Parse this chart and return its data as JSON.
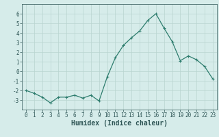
{
  "x": [
    0,
    1,
    2,
    3,
    4,
    5,
    6,
    7,
    8,
    9,
    10,
    11,
    12,
    13,
    14,
    15,
    16,
    17,
    18,
    19,
    20,
    21,
    22,
    23
  ],
  "y": [
    -2,
    -2.3,
    -2.7,
    -3.3,
    -2.7,
    -2.7,
    -2.5,
    -2.8,
    -2.5,
    -3.1,
    -0.6,
    1.4,
    2.7,
    3.5,
    4.2,
    5.3,
    6.0,
    4.5,
    3.1,
    1.1,
    1.6,
    1.2,
    0.5,
    -0.8
  ],
  "line_color": "#2e7d6e",
  "marker": "+",
  "marker_size": 3,
  "marker_lw": 0.8,
  "bg_color": "#d6ecea",
  "grid_color": "#b8d4d0",
  "xlabel": "Humidex (Indice chaleur)",
  "xlim": [
    -0.5,
    23.5
  ],
  "ylim": [
    -4,
    7
  ],
  "yticks": [
    -3,
    -2,
    -1,
    0,
    1,
    2,
    3,
    4,
    5,
    6
  ],
  "xticks": [
    0,
    1,
    2,
    3,
    4,
    5,
    6,
    7,
    8,
    9,
    10,
    11,
    12,
    13,
    14,
    15,
    16,
    17,
    18,
    19,
    20,
    21,
    22,
    23
  ],
  "tick_label_fontsize": 5.5,
  "xlabel_fontsize": 7,
  "font_color": "#2e5555",
  "line_width": 0.9
}
